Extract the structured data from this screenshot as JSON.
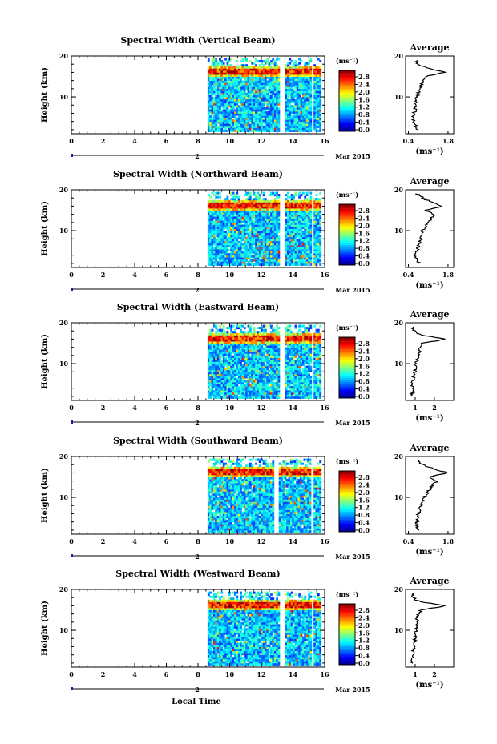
{
  "figure": {
    "xlabel": "Local Time",
    "date_label": "Mar 2015",
    "colorbar_unit": "(ms⁻¹)",
    "profile_title": "Average",
    "profile_unit": "(ms⁻¹)",
    "ylabel": "Height (km)",
    "day_marker": "2",
    "colorbar_ticks": [
      "2.8",
      "2.4",
      "2.0",
      "1.6",
      "1.2",
      "0.8",
      "0.4",
      "0.0"
    ],
    "colors": {
      "jet_low": "#00007f",
      "jet_mid": "#7fff7f",
      "jet_high": "#7f0000",
      "profile_line": "#000000",
      "axis": "#000000",
      "timebar": "#1a1aa0"
    }
  },
  "chart_data": [
    {
      "type": "heatmap",
      "title": "Spectral Width (Vertical Beam)",
      "xlabel": "Local Time",
      "ylabel": "Height (km)",
      "xlim": [
        0,
        16
      ],
      "ylim": [
        1,
        20
      ],
      "xticks": [
        0,
        2,
        4,
        6,
        8,
        10,
        12,
        14,
        16
      ],
      "xtick_labels": [
        "0",
        "2",
        "4",
        "6",
        "8",
        "10",
        "12",
        "14",
        "16"
      ],
      "yticks": [
        10,
        20
      ],
      "colorbar": {
        "min": 0.0,
        "max": 3.0,
        "ticks": [
          0.0,
          0.4,
          0.8,
          1.2,
          1.6,
          2.0,
          2.4,
          2.8
        ],
        "unit": "(ms⁻¹)"
      },
      "data_periods": [
        [
          8.6,
          13.1
        ],
        [
          13.5,
          15.1
        ],
        [
          15.3,
          15.7
        ]
      ],
      "high_band_km": 16,
      "profile": {
        "title": "Average",
        "xlim": [
          0.3,
          2.0
        ],
        "xticks": [
          0.4,
          1.8
        ],
        "xtick_labels": [
          "0.4",
          "1.8"
        ],
        "height_km": [
          2,
          3,
          4,
          5,
          6,
          7,
          8,
          9,
          10,
          11,
          12,
          13,
          14,
          15,
          16,
          17,
          18,
          19
        ],
        "values": [
          0.7,
          0.65,
          0.6,
          0.55,
          0.6,
          0.65,
          0.62,
          0.68,
          0.7,
          0.75,
          0.8,
          0.85,
          0.9,
          1.0,
          1.7,
          1.1,
          0.75,
          0.65
        ]
      }
    },
    {
      "type": "heatmap",
      "title": "Spectral Width (Northward Beam)",
      "xlabel": "Local Time",
      "ylabel": "Height (km)",
      "xlim": [
        0,
        16
      ],
      "ylim": [
        1,
        20
      ],
      "xticks": [
        0,
        2,
        4,
        6,
        8,
        10,
        12,
        14,
        16
      ],
      "xtick_labels": [
        "0",
        "2",
        "4",
        "6",
        "8",
        "10",
        "12",
        "14",
        "16"
      ],
      "yticks": [
        10,
        20
      ],
      "colorbar": {
        "min": 0.0,
        "max": 3.0,
        "ticks": [
          0.0,
          0.4,
          0.8,
          1.2,
          1.6,
          2.0,
          2.4,
          2.8
        ],
        "unit": "(ms⁻¹)"
      },
      "data_periods": [
        [
          8.6,
          13.1
        ],
        [
          13.5,
          15.1
        ],
        [
          15.3,
          15.7
        ]
      ],
      "high_band_km": 16,
      "profile": {
        "title": "Average",
        "xlim": [
          0.3,
          2.0
        ],
        "xticks": [
          0.4,
          1.8
        ],
        "xtick_labels": [
          "0.4",
          "1.8"
        ],
        "height_km": [
          2,
          3,
          4,
          5,
          6,
          7,
          8,
          9,
          10,
          11,
          12,
          13,
          14,
          15,
          16,
          17,
          18,
          19
        ],
        "values": [
          0.8,
          0.7,
          0.65,
          0.7,
          0.75,
          0.8,
          0.85,
          0.85,
          0.9,
          1.0,
          1.1,
          1.2,
          1.3,
          1.0,
          1.6,
          1.2,
          0.9,
          0.7
        ]
      }
    },
    {
      "type": "heatmap",
      "title": "Spectral Width (Eastward Beam)",
      "xlabel": "Local Time",
      "ylabel": "Height (km)",
      "xlim": [
        0,
        16
      ],
      "ylim": [
        1,
        20
      ],
      "xticks": [
        0,
        2,
        4,
        6,
        8,
        10,
        12,
        14,
        16
      ],
      "xtick_labels": [
        "0",
        "2",
        "4",
        "6",
        "8",
        "10",
        "12",
        "14",
        "16"
      ],
      "yticks": [
        10,
        20
      ],
      "colorbar": {
        "min": 0.0,
        "max": 3.0,
        "ticks": [
          0.0,
          0.4,
          0.8,
          1.2,
          1.6,
          2.0,
          2.4,
          2.8
        ],
        "unit": "(ms⁻¹)"
      },
      "data_periods": [
        [
          8.6,
          13.1
        ],
        [
          13.5,
          15.1
        ],
        [
          15.3,
          15.7
        ]
      ],
      "high_band_km": 16,
      "profile": {
        "title": "Average",
        "xlim": [
          0.5,
          3.0
        ],
        "xticks": [
          1,
          2
        ],
        "xtick_labels": [
          "1",
          "2"
        ],
        "height_km": [
          2,
          3,
          4,
          5,
          6,
          7,
          8,
          9,
          10,
          11,
          12,
          13,
          14,
          15,
          16,
          17,
          18,
          19
        ],
        "values": [
          0.8,
          0.85,
          0.9,
          0.85,
          0.9,
          0.95,
          1.0,
          1.0,
          1.05,
          1.1,
          1.15,
          1.2,
          1.3,
          1.4,
          2.6,
          1.3,
          0.95,
          0.85
        ]
      }
    },
    {
      "type": "heatmap",
      "title": "Spectral Width (Southward Beam)",
      "xlabel": "Local Time",
      "ylabel": "Height (km)",
      "xlim": [
        0,
        16
      ],
      "ylim": [
        1,
        20
      ],
      "xticks": [
        0,
        2,
        4,
        6,
        8,
        10,
        12,
        14,
        16
      ],
      "xtick_labels": [
        "0",
        "2",
        "4",
        "6",
        "8",
        "10",
        "12",
        "14",
        "16"
      ],
      "yticks": [
        10,
        20
      ],
      "colorbar": {
        "min": 0.0,
        "max": 3.0,
        "ticks": [
          0.0,
          0.4,
          0.8,
          1.2,
          1.6,
          2.0,
          2.4,
          2.8
        ],
        "unit": "(ms⁻¹)"
      },
      "data_periods": [
        [
          8.6,
          12.7
        ],
        [
          13.1,
          15.1
        ],
        [
          15.3,
          15.7
        ]
      ],
      "high_band_km": 16,
      "profile": {
        "title": "Average",
        "xlim": [
          0.3,
          2.0
        ],
        "xticks": [
          0.4,
          1.8
        ],
        "xtick_labels": [
          "0.4",
          "1.8"
        ],
        "height_km": [
          2,
          3,
          4,
          5,
          6,
          7,
          8,
          9,
          10,
          11,
          12,
          13,
          14,
          15,
          16,
          17,
          18,
          19
        ],
        "values": [
          0.75,
          0.7,
          0.7,
          0.72,
          0.75,
          0.8,
          0.85,
          0.9,
          0.95,
          1.05,
          1.15,
          1.25,
          1.4,
          1.1,
          1.8,
          1.3,
          0.9,
          0.75
        ]
      }
    },
    {
      "type": "heatmap",
      "title": "Spectral Width (Westward Beam)",
      "xlabel": "Local Time",
      "ylabel": "Height (km)",
      "xlim": [
        0,
        16
      ],
      "ylim": [
        1,
        20
      ],
      "xticks": [
        0,
        2,
        4,
        6,
        8,
        10,
        12,
        14,
        16
      ],
      "xtick_labels": [
        "0",
        "2",
        "4",
        "6",
        "8",
        "10",
        "12",
        "14",
        "16"
      ],
      "yticks": [
        10,
        20
      ],
      "colorbar": {
        "min": 0.0,
        "max": 3.0,
        "ticks": [
          0.0,
          0.4,
          0.8,
          1.2,
          1.6,
          2.0,
          2.4,
          2.8
        ],
        "unit": "(ms⁻¹)"
      },
      "data_periods": [
        [
          8.6,
          13.1
        ],
        [
          13.5,
          15.1
        ],
        [
          15.3,
          15.7
        ]
      ],
      "high_band_km": 16,
      "profile": {
        "title": "Average",
        "xlim": [
          0.5,
          3.0
        ],
        "xticks": [
          1,
          2
        ],
        "xtick_labels": [
          "1",
          "2"
        ],
        "height_km": [
          2,
          3,
          4,
          5,
          6,
          7,
          8,
          9,
          10,
          11,
          12,
          13,
          14,
          15,
          16,
          17,
          18,
          19
        ],
        "values": [
          0.8,
          0.85,
          0.9,
          0.88,
          0.92,
          0.95,
          1.0,
          1.0,
          1.05,
          1.05,
          1.1,
          1.1,
          1.2,
          1.3,
          2.6,
          1.2,
          0.9,
          0.85
        ]
      }
    }
  ]
}
